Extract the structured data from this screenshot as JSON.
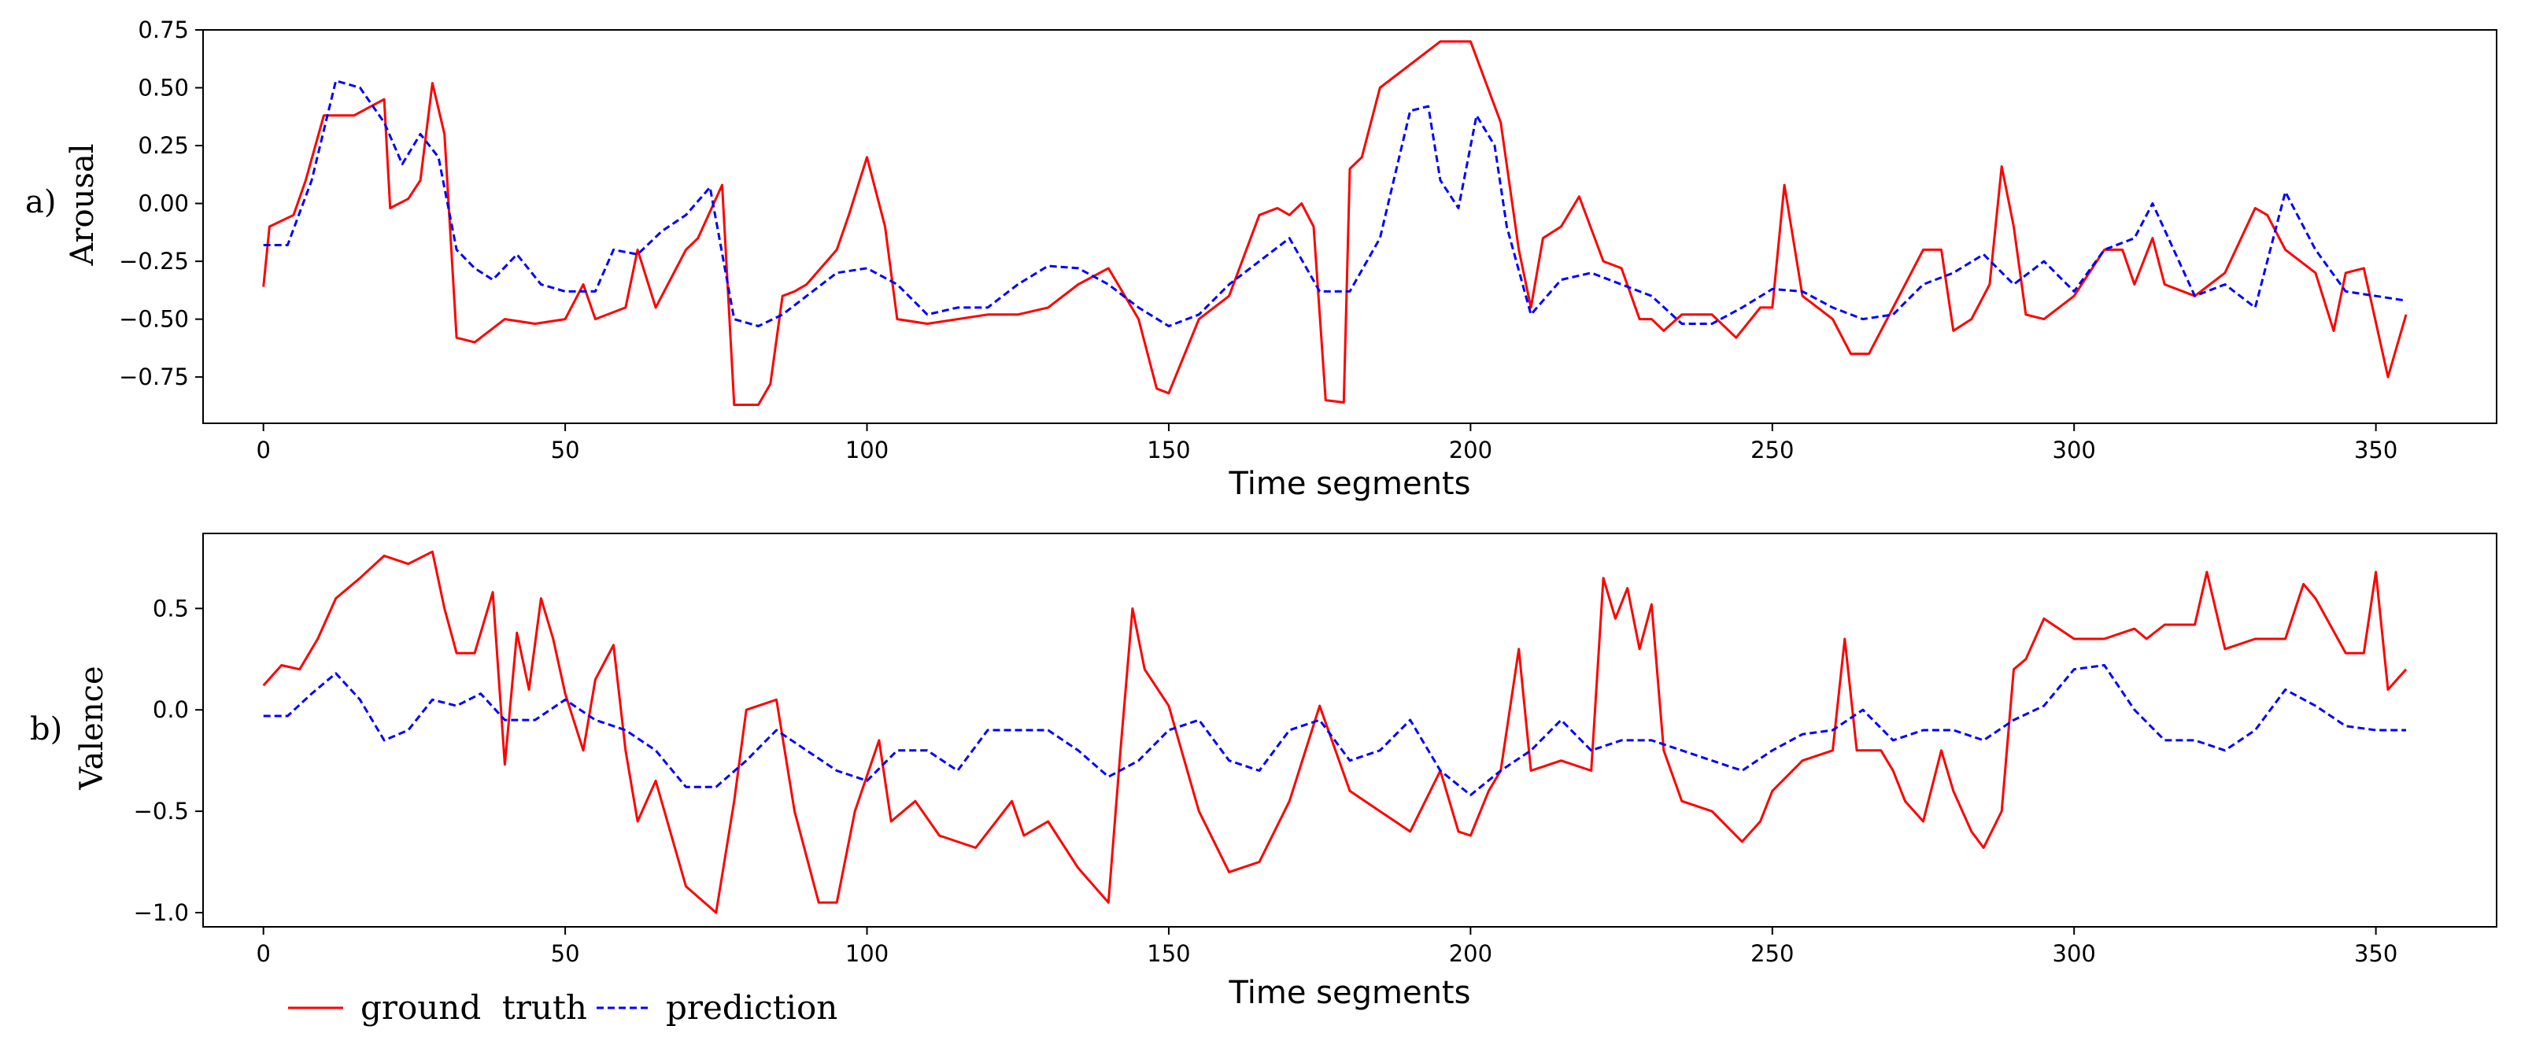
{
  "colors": {
    "ground_truth": "#ff0000",
    "prediction": "#0000ff"
  },
  "legend": {
    "entries": [
      "ground  truth",
      "prediction"
    ]
  },
  "chart_data": [
    {
      "type": "line",
      "panel_label": "a)",
      "ylabel": "Arousal",
      "xlabel": "Time segments",
      "xlim": [
        -10,
        370
      ],
      "ylim": [
        -0.95,
        0.75
      ],
      "xticks": [
        0,
        50,
        100,
        150,
        200,
        250,
        300,
        350
      ],
      "xtick_labels": [
        "0",
        "50",
        "100",
        "150",
        "200",
        "250",
        "300",
        "350"
      ],
      "yticks": [
        0.75,
        0.5,
        0.25,
        0.0,
        -0.25,
        -0.5,
        -0.75
      ],
      "ytick_labels": [
        "0.75",
        "0.50",
        "0.25",
        "0.00",
        "−0.25",
        "−0.50",
        "−0.75"
      ],
      "series": [
        {
          "name": "ground truth",
          "style": "solid",
          "x": [
            0,
            1,
            5,
            7,
            10,
            15,
            20,
            21,
            24,
            26,
            28,
            30,
            32,
            35,
            40,
            45,
            50,
            53,
            55,
            60,
            62,
            65,
            70,
            72,
            76,
            78,
            82,
            84,
            86,
            88,
            90,
            95,
            97,
            100,
            103,
            105,
            110,
            120,
            125,
            130,
            135,
            140,
            145,
            148,
            150,
            155,
            160,
            165,
            168,
            170,
            172,
            174,
            176,
            179,
            180,
            182,
            185,
            190,
            195,
            200,
            205,
            208,
            210,
            212,
            215,
            218,
            222,
            225,
            228,
            230,
            232,
            235,
            240,
            244,
            248,
            250,
            252,
            255,
            260,
            263,
            266,
            270,
            273,
            275,
            278,
            280,
            283,
            286,
            288,
            290,
            292,
            295,
            300,
            305,
            308,
            310,
            313,
            315,
            320,
            325,
            330,
            332,
            335,
            340,
            343,
            345,
            348,
            352,
            355
          ],
          "values": [
            -0.36,
            -0.1,
            -0.05,
            0.1,
            0.38,
            0.38,
            0.45,
            -0.02,
            0.02,
            0.1,
            0.52,
            0.3,
            -0.58,
            -0.6,
            -0.5,
            -0.52,
            -0.5,
            -0.35,
            -0.5,
            -0.45,
            -0.2,
            -0.45,
            -0.2,
            -0.15,
            0.08,
            -0.87,
            -0.87,
            -0.78,
            -0.4,
            -0.38,
            -0.35,
            -0.2,
            -0.05,
            0.2,
            -0.1,
            -0.5,
            -0.52,
            -0.48,
            -0.48,
            -0.45,
            -0.35,
            -0.28,
            -0.5,
            -0.8,
            -0.82,
            -0.5,
            -0.4,
            -0.05,
            -0.02,
            -0.05,
            0.0,
            -0.1,
            -0.85,
            -0.86,
            0.15,
            0.2,
            0.5,
            0.6,
            0.7,
            0.7,
            0.35,
            -0.2,
            -0.45,
            -0.15,
            -0.1,
            0.03,
            -0.25,
            -0.28,
            -0.5,
            -0.5,
            -0.55,
            -0.48,
            -0.48,
            -0.58,
            -0.45,
            -0.45,
            0.08,
            -0.4,
            -0.5,
            -0.65,
            -0.65,
            -0.45,
            -0.3,
            -0.2,
            -0.2,
            -0.55,
            -0.5,
            -0.35,
            0.16,
            -0.1,
            -0.48,
            -0.5,
            -0.4,
            -0.2,
            -0.2,
            -0.35,
            -0.15,
            -0.35,
            -0.4,
            -0.3,
            -0.02,
            -0.05,
            -0.2,
            -0.3,
            -0.55,
            -0.3,
            -0.28,
            -0.75,
            -0.48
          ]
        },
        {
          "name": "prediction",
          "style": "dashed",
          "x": [
            0,
            4,
            8,
            12,
            16,
            20,
            23,
            26,
            29,
            32,
            35,
            38,
            42,
            46,
            50,
            55,
            58,
            62,
            66,
            70,
            74,
            78,
            82,
            86,
            90,
            95,
            100,
            105,
            110,
            115,
            120,
            125,
            130,
            135,
            140,
            145,
            150,
            155,
            160,
            165,
            170,
            175,
            180,
            185,
            190,
            193,
            195,
            198,
            201,
            204,
            206,
            210,
            215,
            220,
            230,
            235,
            240,
            245,
            250,
            255,
            260,
            265,
            270,
            275,
            280,
            285,
            290,
            295,
            300,
            305,
            310,
            313,
            320,
            325,
            330,
            335,
            340,
            345,
            350,
            355
          ],
          "values": [
            -0.18,
            -0.18,
            0.1,
            0.53,
            0.5,
            0.35,
            0.17,
            0.3,
            0.2,
            -0.2,
            -0.28,
            -0.33,
            -0.22,
            -0.35,
            -0.38,
            -0.38,
            -0.2,
            -0.22,
            -0.12,
            -0.05,
            0.07,
            -0.5,
            -0.53,
            -0.48,
            -0.4,
            -0.3,
            -0.28,
            -0.35,
            -0.48,
            -0.45,
            -0.45,
            -0.35,
            -0.27,
            -0.28,
            -0.35,
            -0.45,
            -0.53,
            -0.48,
            -0.35,
            -0.25,
            -0.15,
            -0.38,
            -0.38,
            -0.15,
            0.4,
            0.42,
            0.1,
            -0.02,
            0.38,
            0.25,
            -0.1,
            -0.48,
            -0.33,
            -0.3,
            -0.4,
            -0.52,
            -0.52,
            -0.45,
            -0.37,
            -0.38,
            -0.45,
            -0.5,
            -0.48,
            -0.35,
            -0.3,
            -0.22,
            -0.35,
            -0.25,
            -0.38,
            -0.2,
            -0.15,
            0.0,
            -0.4,
            -0.35,
            -0.45,
            0.05,
            -0.2,
            -0.38,
            -0.4,
            -0.42
          ]
        }
      ]
    },
    {
      "type": "line",
      "panel_label": "b)",
      "ylabel": "Valence",
      "xlabel": "Time segments",
      "xlim": [
        -10,
        370
      ],
      "ylim": [
        -1.07,
        0.87
      ],
      "xticks": [
        0,
        50,
        100,
        150,
        200,
        250,
        300,
        350
      ],
      "xtick_labels": [
        "0",
        "50",
        "100",
        "150",
        "200",
        "250",
        "300",
        "350"
      ],
      "yticks": [
        0.5,
        0.0,
        -0.5,
        -1.0
      ],
      "ytick_labels": [
        "0.5",
        "0.0",
        "−0.5",
        "−1.0"
      ],
      "series": [
        {
          "name": "ground truth",
          "style": "solid",
          "x": [
            0,
            3,
            6,
            9,
            12,
            16,
            20,
            24,
            28,
            30,
            32,
            35,
            38,
            40,
            42,
            44,
            46,
            48,
            50,
            53,
            55,
            58,
            60,
            62,
            65,
            70,
            75,
            78,
            80,
            85,
            88,
            92,
            95,
            98,
            102,
            104,
            108,
            112,
            118,
            124,
            126,
            130,
            135,
            140,
            142,
            144,
            146,
            150,
            155,
            160,
            165,
            170,
            175,
            180,
            185,
            190,
            195,
            198,
            200,
            203,
            205,
            208,
            210,
            212,
            215,
            220,
            222,
            224,
            226,
            228,
            230,
            232,
            235,
            240,
            245,
            248,
            250,
            255,
            260,
            262,
            264,
            268,
            270,
            272,
            275,
            278,
            280,
            283,
            285,
            288,
            290,
            292,
            295,
            300,
            305,
            310,
            312,
            315,
            320,
            322,
            325,
            330,
            335,
            338,
            340,
            345,
            348,
            350,
            352,
            355
          ],
          "values": [
            0.12,
            0.22,
            0.2,
            0.35,
            0.55,
            0.65,
            0.76,
            0.72,
            0.78,
            0.5,
            0.28,
            0.28,
            0.58,
            -0.27,
            0.38,
            0.1,
            0.55,
            0.35,
            0.08,
            -0.2,
            0.15,
            0.32,
            -0.2,
            -0.55,
            -0.35,
            -0.87,
            -1.0,
            -0.45,
            0.0,
            0.05,
            -0.5,
            -0.95,
            -0.95,
            -0.5,
            -0.15,
            -0.55,
            -0.45,
            -0.62,
            -0.68,
            -0.45,
            -0.62,
            -0.55,
            -0.78,
            -0.95,
            -0.2,
            0.5,
            0.2,
            0.02,
            -0.5,
            -0.8,
            -0.75,
            -0.45,
            0.02,
            -0.4,
            -0.5,
            -0.6,
            -0.3,
            -0.6,
            -0.62,
            -0.4,
            -0.3,
            0.3,
            -0.3,
            -0.28,
            -0.25,
            -0.3,
            0.65,
            0.45,
            0.6,
            0.3,
            0.52,
            -0.2,
            -0.45,
            -0.5,
            -0.65,
            -0.55,
            -0.4,
            -0.25,
            -0.2,
            0.35,
            -0.2,
            -0.2,
            -0.3,
            -0.45,
            -0.55,
            -0.2,
            -0.4,
            -0.6,
            -0.68,
            -0.5,
            0.2,
            0.25,
            0.45,
            0.35,
            0.35,
            0.4,
            0.35,
            0.42,
            0.42,
            0.68,
            0.3,
            0.35,
            0.35,
            0.62,
            0.55,
            0.28,
            0.28,
            0.68,
            0.1,
            0.2
          ]
        },
        {
          "name": "prediction",
          "style": "dashed",
          "x": [
            0,
            4,
            8,
            12,
            16,
            20,
            24,
            28,
            32,
            36,
            40,
            45,
            50,
            55,
            60,
            65,
            70,
            75,
            80,
            85,
            90,
            95,
            100,
            105,
            110,
            115,
            120,
            125,
            130,
            135,
            140,
            145,
            150,
            155,
            160,
            165,
            170,
            175,
            180,
            185,
            190,
            195,
            200,
            205,
            210,
            215,
            220,
            225,
            230,
            235,
            240,
            245,
            250,
            255,
            260,
            265,
            270,
            275,
            280,
            285,
            290,
            295,
            300,
            305,
            310,
            315,
            320,
            325,
            330,
            335,
            340,
            345,
            350,
            355
          ],
          "values": [
            -0.03,
            -0.03,
            0.08,
            0.18,
            0.05,
            -0.15,
            -0.1,
            0.05,
            0.02,
            0.08,
            -0.05,
            -0.05,
            0.05,
            -0.05,
            -0.1,
            -0.2,
            -0.38,
            -0.38,
            -0.25,
            -0.1,
            -0.2,
            -0.3,
            -0.35,
            -0.2,
            -0.2,
            -0.3,
            -0.1,
            -0.1,
            -0.1,
            -0.2,
            -0.33,
            -0.25,
            -0.1,
            -0.05,
            -0.25,
            -0.3,
            -0.1,
            -0.05,
            -0.25,
            -0.2,
            -0.05,
            -0.3,
            -0.42,
            -0.3,
            -0.2,
            -0.05,
            -0.2,
            -0.15,
            -0.15,
            -0.2,
            -0.25,
            -0.3,
            -0.2,
            -0.12,
            -0.1,
            0.0,
            -0.15,
            -0.1,
            -0.1,
            -0.15,
            -0.05,
            0.02,
            0.2,
            0.22,
            0.0,
            -0.15,
            -0.15,
            -0.2,
            -0.1,
            0.1,
            0.02,
            -0.08,
            -0.1,
            -0.1
          ]
        }
      ]
    }
  ]
}
